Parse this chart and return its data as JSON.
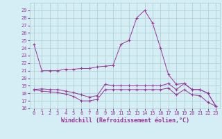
{
  "xlabel": "Windchill (Refroidissement éolien,°C)",
  "hours": [
    0,
    1,
    2,
    3,
    4,
    5,
    6,
    7,
    8,
    9,
    10,
    11,
    12,
    13,
    14,
    15,
    16,
    17,
    18,
    19,
    20,
    21,
    22,
    23
  ],
  "line_a": [
    24.5,
    21.0,
    21.0,
    21.0,
    21.2,
    21.2,
    21.3,
    21.3,
    21.5,
    21.6,
    21.7,
    24.5,
    25.0,
    28.0,
    29.0,
    27.3,
    24.0,
    20.5,
    19.2,
    19.3,
    18.5,
    18.5,
    18.0,
    16.3
  ],
  "line_b": [
    18.5,
    18.6,
    18.5,
    18.5,
    18.3,
    18.1,
    17.8,
    17.5,
    17.7,
    19.2,
    19.0,
    19.0,
    19.0,
    19.0,
    19.0,
    19.0,
    19.0,
    19.3,
    18.5,
    19.3,
    18.5,
    18.5,
    18.0,
    16.3
  ],
  "line_c": [
    18.5,
    18.3,
    18.2,
    18.1,
    17.9,
    17.6,
    17.0,
    17.0,
    17.2,
    18.5,
    18.5,
    18.5,
    18.5,
    18.5,
    18.5,
    18.5,
    18.5,
    18.7,
    17.8,
    18.5,
    17.8,
    17.7,
    16.8,
    16.3
  ],
  "line_color": "#993399",
  "bg_color": "#d5eef5",
  "grid_color": "#aacccc",
  "ylim": [
    16,
    30
  ],
  "yticks": [
    16,
    17,
    18,
    19,
    20,
    21,
    22,
    23,
    24,
    25,
    26,
    27,
    28,
    29
  ],
  "xticks": [
    0,
    1,
    2,
    3,
    4,
    5,
    6,
    7,
    8,
    9,
    10,
    11,
    12,
    13,
    14,
    15,
    16,
    17,
    18,
    19,
    20,
    21,
    22,
    23
  ]
}
